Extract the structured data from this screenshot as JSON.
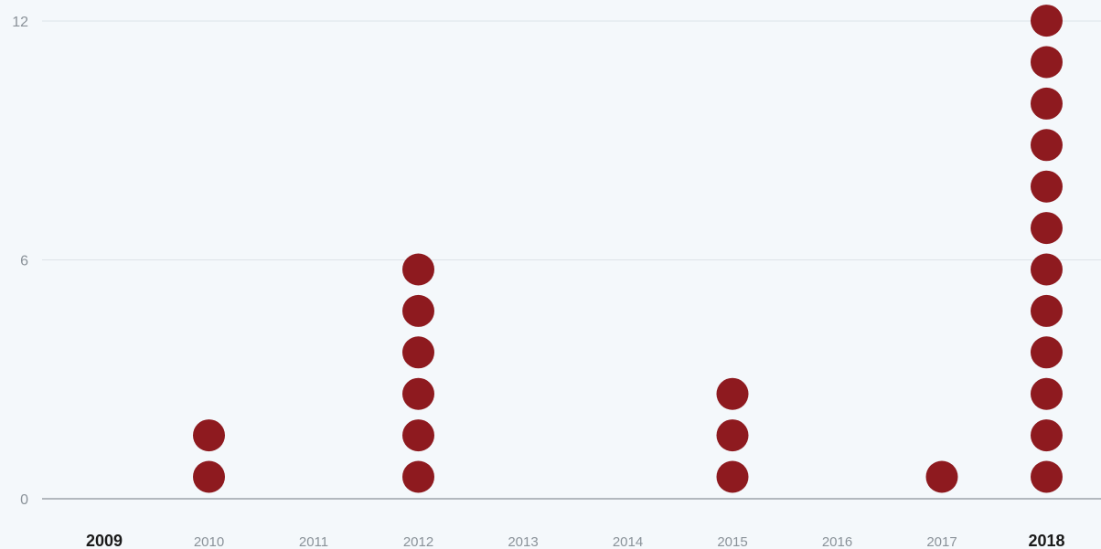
{
  "chart_data": {
    "type": "scatter",
    "subtype": "dot-stack",
    "title": "",
    "xlabel": "",
    "ylabel": "",
    "categories": [
      "2009",
      "2010",
      "2011",
      "2012",
      "2013",
      "2014",
      "2015",
      "2016",
      "2017",
      "2018"
    ],
    "emphasized_categories": [
      "2009",
      "2018"
    ],
    "values": [
      0,
      2,
      0,
      6,
      0,
      0,
      3,
      0,
      1,
      12
    ],
    "y_ticks": [
      "0",
      "6",
      "12"
    ],
    "ylim": [
      0,
      12
    ],
    "grid": true,
    "legend": "none",
    "colors": {
      "dot": "#8e1a1f",
      "background": "#f4f8fb",
      "gridline": "#dde3e8",
      "tick_label": "#8a9299",
      "emphasized_label": "#1a1a1a"
    }
  }
}
